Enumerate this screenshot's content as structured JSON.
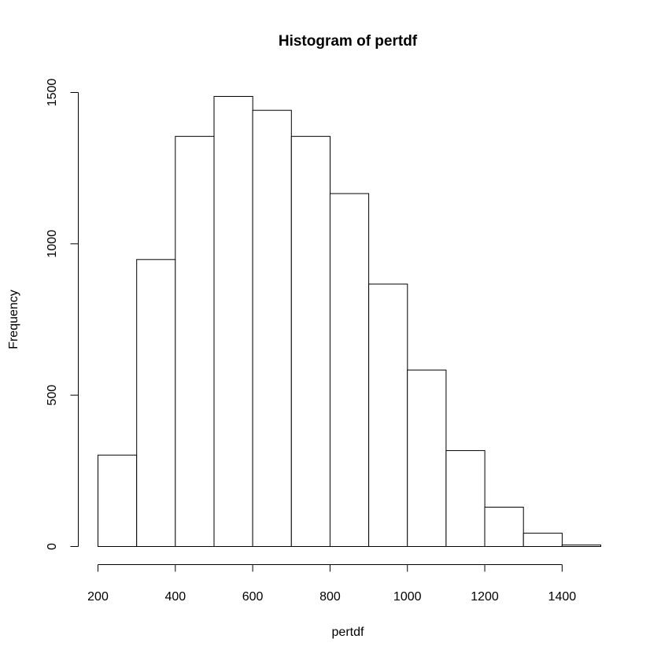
{
  "chart_data": {
    "type": "histogram",
    "title": "Histogram of pertdf",
    "xlabel": "pertdf",
    "ylabel": "Frequency",
    "bin_edges": [
      200,
      300,
      400,
      500,
      600,
      700,
      800,
      900,
      1000,
      1100,
      1200,
      1300,
      1400,
      1500
    ],
    "counts": [
      302,
      948,
      1355,
      1487,
      1441,
      1355,
      1166,
      867,
      583,
      317,
      130,
      44,
      5
    ],
    "x_ticks": [
      200,
      400,
      600,
      800,
      1000,
      1200,
      1400
    ],
    "x_tick_labels": [
      "200",
      "400",
      "600",
      "800",
      "1000",
      "1200",
      "1400"
    ],
    "y_ticks": [
      0,
      500,
      1000,
      1500
    ],
    "y_tick_labels": [
      "0",
      "500",
      "1000",
      "1500"
    ],
    "xlim": [
      200,
      1500
    ],
    "ylim": [
      0,
      1500
    ],
    "grid": false,
    "bar_fill": "#ffffff",
    "bar_stroke": "#000000"
  }
}
